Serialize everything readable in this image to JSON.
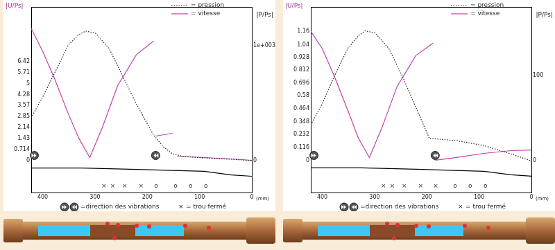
{
  "chart_data": [
    {
      "type": "line",
      "x_label": "(mm)",
      "y_label": "|U/Ps|",
      "y2_label": "|P/Ps|",
      "xlim": [
        422,
        0
      ],
      "xticks": [
        400,
        300,
        200,
        100,
        0
      ],
      "ylim": [
        -2.1,
        10
      ],
      "yticks": [
        0,
        0.714,
        1.43,
        2.14,
        2.85,
        3.57,
        4.28,
        5,
        5.71,
        6.42
      ],
      "y2lim": [
        -277,
        1337
      ],
      "y2ticks": [
        0,
        {
          "value": 1000,
          "label": "1e+003"
        }
      ],
      "grid": false,
      "legend": "top right",
      "series": [
        {
          "name": "= pression",
          "color": "#222222",
          "line_style": "dotted",
          "axis": "y2",
          "x": [
            422,
            400,
            377,
            351,
            331,
            318,
            299,
            273,
            247,
            221,
            188,
            169,
            152,
            130,
            91,
            39,
            0
          ],
          "values": [
            373,
            554,
            765,
            1006,
            1096,
            1127,
            1108,
            976,
            735,
            494,
            223,
            120,
            60,
            36,
            24,
            12,
            0
          ]
        },
        {
          "name": "= vitesse",
          "color": "#c040b0",
          "line_style": "solid",
          "x": [
            422,
            400,
            377,
            351,
            331,
            310,
            286,
            257,
            221,
            188,
            186,
            184,
            152,
            148,
            143,
            91,
            39,
            0
          ],
          "values": [
            8.6,
            7.1,
            5.29,
            3.03,
            1.45,
            0.18,
            2.13,
            4.84,
            6.88,
            7.78,
            null,
            1.58,
            1.76,
            null,
            0.27,
            0.18,
            0.09,
            0
          ]
        },
        {
          "color": "#000000",
          "line_style": "solid",
          "x": [
            422,
            325,
            221,
            91,
            39,
            0
          ],
          "values": [
            -0.5,
            -0.5,
            -0.59,
            -0.72,
            -0.95,
            -1.04
          ]
        }
      ],
      "holes": {
        "x": [
          283,
          266,
          243,
          212,
          183,
          146,
          117,
          88
        ],
        "marks": [
          "×",
          "×",
          "×",
          "×",
          "o",
          "o",
          "o",
          "o"
        ]
      },
      "direction_markers": [
        {
          "x": 416,
          "direction": "right"
        },
        {
          "x": 184,
          "direction": "left"
        }
      ],
      "direction_label": "=direction des vibrations",
      "hole_legend": {
        "mark": "×",
        "label": "= trou fermé"
      }
    },
    {
      "type": "line",
      "x_label": "(mm)",
      "y_label": "|U/Ps|",
      "y2_label": "|P/Ps|",
      "xlim": [
        422,
        0
      ],
      "xticks": [
        400,
        300,
        200,
        100,
        0
      ],
      "ylim": [
        -0.29,
        1.38
      ],
      "yticks": [
        0,
        0.116,
        0.232,
        0.348,
        0.464,
        0.58,
        0.696,
        0.812,
        0.928,
        1.04,
        1.16
      ],
      "y2lim": [
        -37,
        180
      ],
      "y2ticks": [
        0,
        100
      ],
      "grid": false,
      "legend": "top right",
      "series": [
        {
          "name": "= pression",
          "color": "#222222",
          "line_style": "dotted",
          "axis": "y2",
          "x": [
            422,
            400,
            377,
            351,
            331,
            318,
            299,
            273,
            247,
            221,
            195,
            188,
            143,
            91,
            39,
            0
          ],
          "values": [
            42.3,
            66.7,
            99.2,
            131.7,
            146.3,
            152,
            149.6,
            131.7,
            99.2,
            62.6,
            26,
            26,
            23.6,
            17.9,
            8.1,
            0
          ]
        },
        {
          "name": "= vitesse",
          "color": "#c040b0",
          "line_style": "solid",
          "x": [
            422,
            400,
            377,
            351,
            331,
            310,
            286,
            257,
            221,
            188,
            186,
            184,
            143,
            91,
            39,
            0
          ],
          "values": [
            1.16,
            1.005,
            0.757,
            0.447,
            0.199,
            0.025,
            0.292,
            0.664,
            0.943,
            1.055,
            null,
            0,
            0.025,
            0.062,
            0.087,
            0.093
          ]
        },
        {
          "color": "#000000",
          "line_style": "solid",
          "x": [
            422,
            325,
            221,
            91,
            39,
            0
          ],
          "values": [
            -0.068,
            -0.068,
            -0.081,
            -0.099,
            -0.13,
            -0.143
          ]
        }
      ],
      "holes": {
        "x": [
          283,
          266,
          243,
          212,
          183,
          146,
          117,
          88
        ],
        "marks": [
          "×",
          "×",
          "×",
          "×",
          "×",
          "o",
          "o",
          "o"
        ]
      },
      "direction_markers": [
        {
          "x": 416,
          "direction": "right"
        },
        {
          "x": 184,
          "direction": "left"
        }
      ],
      "direction_label": "=direction des vibrations",
      "hole_legend": {
        "mark": "×",
        "label": "= trou fermé"
      }
    }
  ]
}
